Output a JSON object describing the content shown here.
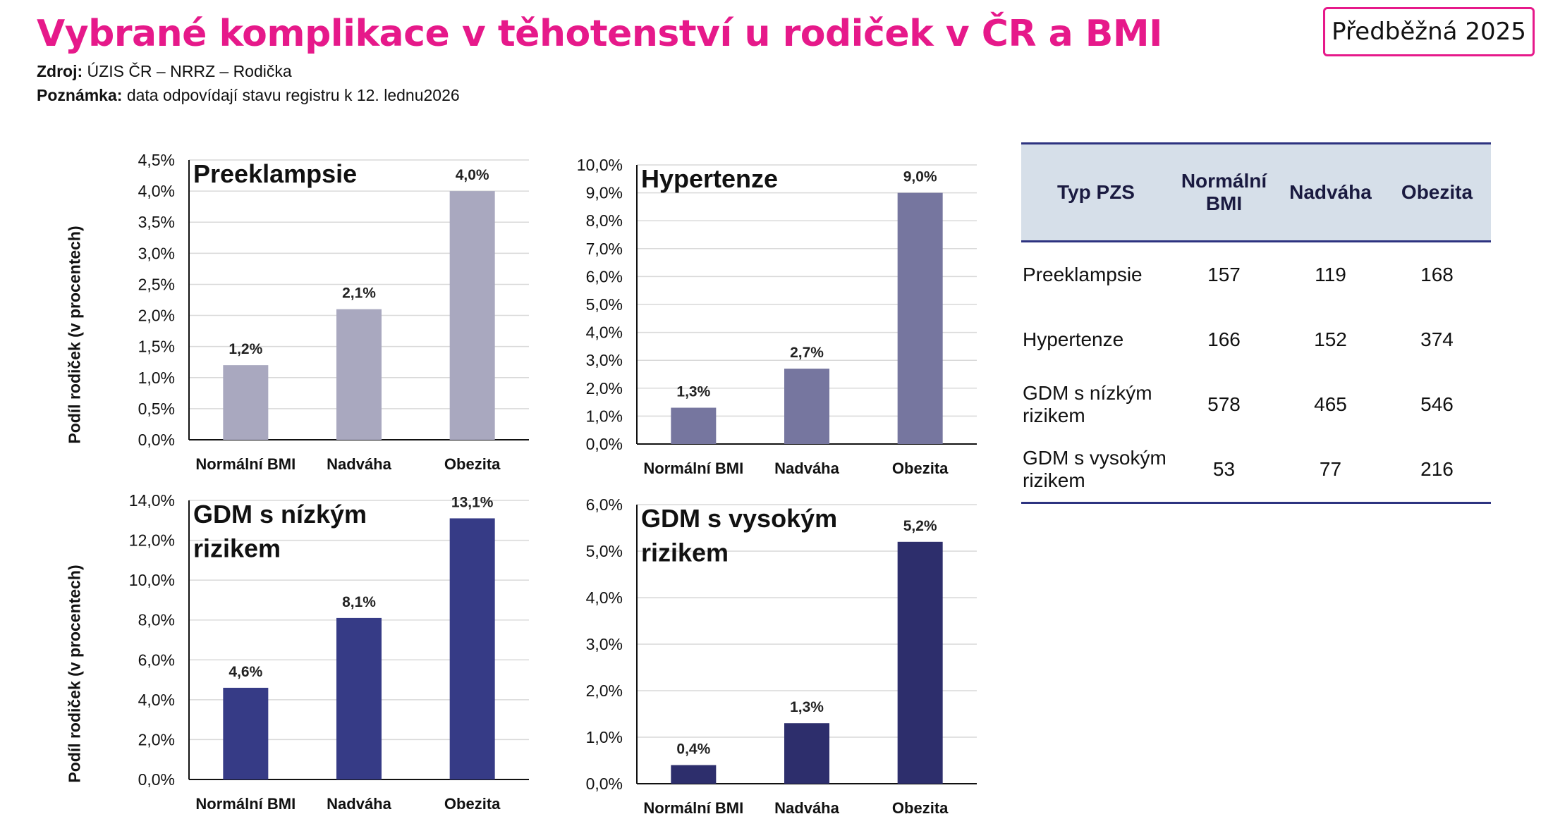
{
  "header": {
    "title": "Vybrané komplikace v těhotenství u rodiček v ČR a BMI",
    "badge": "Předběžná 2025",
    "source_label": "Zdroj:",
    "source_text": " ÚZIS ČR – NRRZ – Rodička",
    "note_label": "Poznámka:",
    "note_text": " data odpovídají stavu registru k 12. lednu2026"
  },
  "y_axis_label": "Podíl rodiček (v procentech)",
  "chart_data": [
    {
      "type": "bar",
      "title": "Preeklampsie",
      "categories": [
        "Normální BMI",
        "Nadváha",
        "Obezita"
      ],
      "values": [
        1.2,
        2.1,
        4.0
      ],
      "value_labels": [
        "1,2%",
        "2,1%",
        "4,0%"
      ],
      "ylim": [
        0,
        4.5
      ],
      "yticks": [
        0,
        0.5,
        1,
        1.5,
        2,
        2.5,
        3,
        3.5,
        4,
        4.5
      ],
      "ytick_labels": [
        "0,0%",
        "0,5%",
        "1,0%",
        "1,5%",
        "2,0%",
        "2,5%",
        "3,0%",
        "3,5%",
        "4,0%",
        "4,5%"
      ],
      "ylabel": "Podíl rodiček (v procentech)",
      "grid": true,
      "color": "#a9a8bf"
    },
    {
      "type": "bar",
      "title": "Hypertenze",
      "categories": [
        "Normální BMI",
        "Nadváha",
        "Obezita"
      ],
      "values": [
        1.3,
        2.7,
        9.0
      ],
      "value_labels": [
        "1,3%",
        "2,7%",
        "9,0%"
      ],
      "ylim": [
        0,
        10
      ],
      "yticks": [
        0,
        1,
        2,
        3,
        4,
        5,
        6,
        7,
        8,
        9,
        10
      ],
      "ytick_labels": [
        "0,0%",
        "1,0%",
        "2,0%",
        "3,0%",
        "4,0%",
        "5,0%",
        "6,0%",
        "7,0%",
        "8,0%",
        "9,0%",
        "10,0%"
      ],
      "grid": true,
      "color": "#76769f"
    },
    {
      "type": "bar",
      "title": "GDM s nízkým rizikem",
      "categories": [
        "Normální BMI",
        "Nadváha",
        "Obezita"
      ],
      "values": [
        4.6,
        8.1,
        13.1
      ],
      "value_labels": [
        "4,6%",
        "8,1%",
        "13,1%"
      ],
      "ylim": [
        0,
        14
      ],
      "yticks": [
        0,
        2,
        4,
        6,
        8,
        10,
        12,
        14
      ],
      "ytick_labels": [
        "0,0%",
        "2,0%",
        "4,0%",
        "6,0%",
        "8,0%",
        "10,0%",
        "12,0%",
        "14,0%"
      ],
      "ylabel": "Podíl rodiček (v procentech)",
      "grid": true,
      "color": "#363b86"
    },
    {
      "type": "bar",
      "title": "GDM s vysokým rizikem",
      "categories": [
        "Normální BMI",
        "Nadváha",
        "Obezita"
      ],
      "values": [
        0.4,
        1.3,
        5.2
      ],
      "value_labels": [
        "0,4%",
        "1,3%",
        "5,2%"
      ],
      "ylim": [
        0,
        6
      ],
      "yticks": [
        0,
        1,
        2,
        3,
        4,
        5,
        6
      ],
      "ytick_labels": [
        "0,0%",
        "1,0%",
        "2,0%",
        "3,0%",
        "4,0%",
        "5,0%",
        "6,0%"
      ],
      "grid": true,
      "color": "#2d2e6c"
    },
    {
      "type": "table",
      "columns": [
        "Typ PZS",
        "Normální BMI",
        "Nadváha",
        "Obezita"
      ],
      "rows": [
        [
          "Preeklampsie",
          "157",
          "119",
          "168"
        ],
        [
          "Hypertenze",
          "166",
          "152",
          "374"
        ],
        [
          "GDM s nízkým rizikem",
          "578",
          "465",
          "546"
        ],
        [
          "GDM s vysokým rizikem",
          "53",
          "77",
          "216"
        ]
      ]
    }
  ],
  "colors": {
    "title": "#e6198a",
    "table_header_bg": "#d6dfe9",
    "table_rule": "#2d3380"
  }
}
